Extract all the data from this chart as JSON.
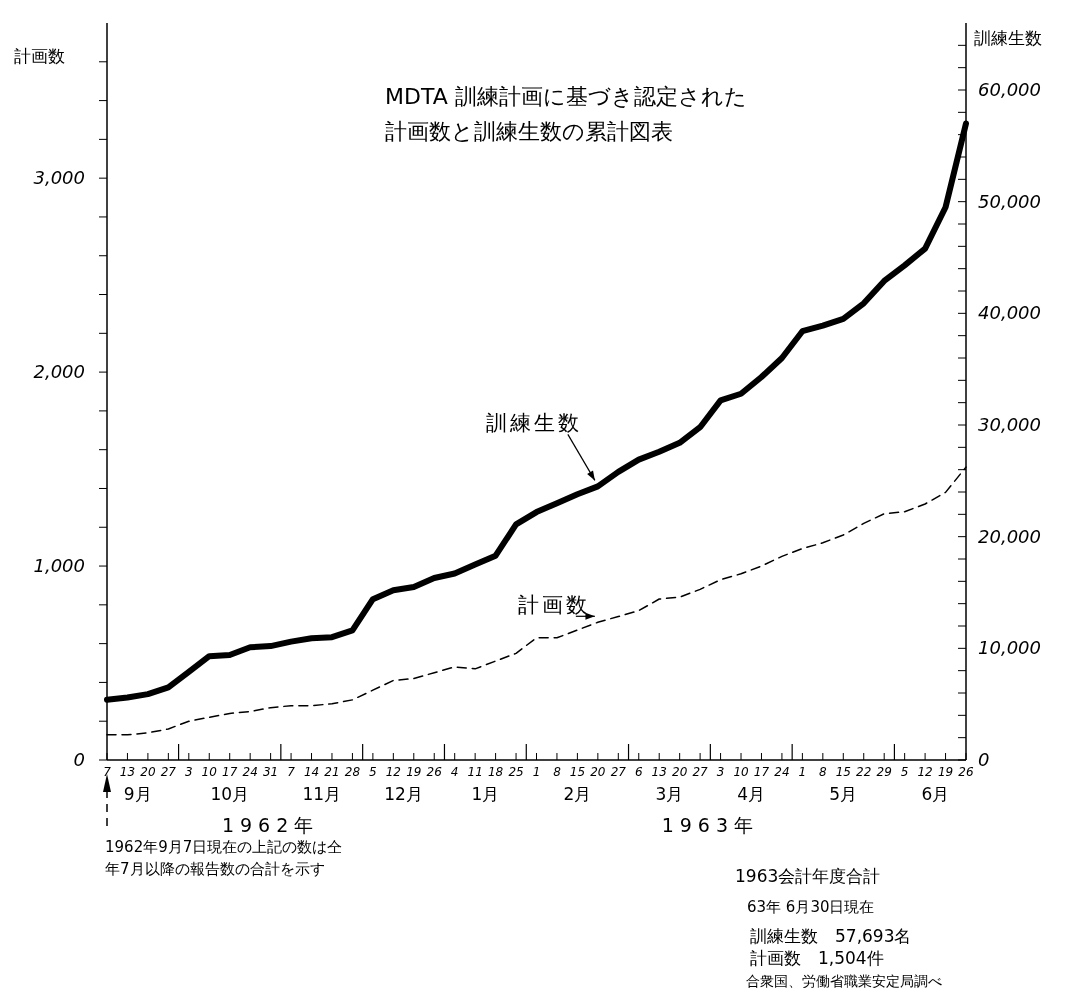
{
  "chart_data": {
    "type": "line",
    "title": "MDTA 訓練計画に基づき認定された計画数と訓練生数の累計図表",
    "ylabel": "計画数",
    "y2label": "訓練生数",
    "categories": [
      "7",
      "13",
      "20",
      "27",
      "3",
      "10",
      "17",
      "24",
      "31",
      "7",
      "14",
      "21",
      "28",
      "5",
      "12",
      "19",
      "26",
      "4",
      "11",
      "18",
      "25",
      "1",
      "8",
      "15",
      "20",
      "27",
      "6",
      "13",
      "20",
      "27",
      "3",
      "10",
      "17",
      "24",
      "1",
      "8",
      "15",
      "22",
      "29",
      "5",
      "12",
      "19",
      "26"
    ],
    "series": [
      {
        "name": "訓練生数",
        "color": "#000000",
        "axis": "y2",
        "line_style": "solid",
        "values": [
          5400,
          5600,
          5900,
          6500,
          7900,
          9300,
          9400,
          10100,
          10200,
          10600,
          10900,
          11000,
          11600,
          14400,
          15200,
          15500,
          16300,
          16700,
          17500,
          18300,
          21100,
          22200,
          23000,
          23800,
          24500,
          25800,
          26900,
          27600,
          28400,
          29800,
          32200,
          32800,
          34300,
          36000,
          38400,
          38900,
          39500,
          40900,
          42900,
          44300,
          45800,
          49500,
          57000
        ]
      },
      {
        "name": "計画数",
        "color": "#000000",
        "line_style": "dashed",
        "values": [
          130,
          130,
          140,
          160,
          200,
          220,
          240,
          250,
          270,
          280,
          280,
          290,
          310,
          360,
          410,
          420,
          450,
          480,
          470,
          510,
          550,
          630,
          630,
          670,
          710,
          740,
          770,
          830,
          840,
          880,
          930,
          960,
          1000,
          1050,
          1090,
          1120,
          1160,
          1220,
          1270,
          1280,
          1320,
          1380,
          1510
        ]
      }
    ],
    "ylim": [
      0,
      3800
    ],
    "yticks": [
      0,
      {
        "value": 200,
        "label": null
      },
      {
        "value": 400,
        "label": null
      },
      {
        "value": 600,
        "label": null
      },
      {
        "value": 800,
        "label": null
      },
      {
        "value": 1000,
        "label": "1,000"
      },
      {
        "value": 1200,
        "label": null
      },
      {
        "value": 1400,
        "label": null
      },
      {
        "value": 1600,
        "label": null
      },
      {
        "value": 1800,
        "label": null
      },
      {
        "value": 2000,
        "label": "2,000"
      },
      {
        "value": 2200,
        "label": null
      },
      {
        "value": 2400,
        "label": null
      },
      {
        "value": 2600,
        "label": null
      },
      {
        "value": 2800,
        "label": null
      },
      {
        "value": 3000,
        "label": "3,000"
      },
      {
        "value": 3200,
        "label": null
      },
      {
        "value": 3400,
        "label": null
      },
      {
        "value": 3600,
        "label": null
      }
    ],
    "y2lim": [
      0,
      66000
    ],
    "y2ticks": [
      0,
      {
        "value": 2000,
        "label": null
      },
      {
        "value": 4000,
        "label": null
      },
      {
        "value": 6000,
        "label": null
      },
      {
        "value": 8000,
        "label": null
      },
      {
        "value": 10000,
        "label": "10,000"
      },
      {
        "value": 12000,
        "label": null
      },
      {
        "value": 14000,
        "label": null
      },
      {
        "value": 16000,
        "label": null
      },
      {
        "value": 18000,
        "label": null
      },
      {
        "value": 20000,
        "label": "20,000"
      },
      {
        "value": 22000,
        "label": null
      },
      {
        "value": 24000,
        "label": null
      },
      {
        "value": 26000,
        "label": null
      },
      {
        "value": 28000,
        "label": null
      },
      {
        "value": 30000,
        "label": "30,000"
      },
      {
        "value": 32000,
        "label": null
      },
      {
        "value": 34000,
        "label": null
      },
      {
        "value": 36000,
        "label": null
      },
      {
        "value": 38000,
        "label": null
      },
      {
        "value": 40000,
        "label": "40,000"
      },
      {
        "value": 42000,
        "label": null
      },
      {
        "value": 44000,
        "label": null
      },
      {
        "value": 46000,
        "label": null
      },
      {
        "value": 48000,
        "label": null
      },
      {
        "value": 50000,
        "label": "50,000"
      },
      {
        "value": 52000,
        "label": null
      },
      {
        "value": 54000,
        "label": null
      },
      {
        "value": 56000,
        "label": null
      },
      {
        "value": 58000,
        "label": null
      },
      {
        "value": 60000,
        "label": "60,000"
      },
      {
        "value": 62000,
        "label": null
      },
      {
        "value": 64000,
        "label": null
      }
    ],
    "annotations": [
      "9月",
      "10月",
      "11月",
      "12月",
      "1月",
      "2月",
      "3月",
      "4月",
      "5月",
      "6月",
      "1962年",
      "1963年",
      "1962年9月7日現在の上記の数は仝年7月以降の報告数の合計を示す",
      "1963会計年度合計",
      "63年 6月30日現在",
      "訓練生数　57,693名",
      "計画数　1,504件",
      "合衆国、労働省職業安定局調べ"
    ]
  }
}
